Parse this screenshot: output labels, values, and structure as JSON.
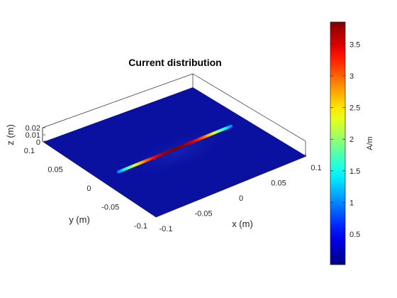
{
  "chart_data": {
    "type": "heatmap",
    "title": "Current distribution",
    "xlabel": "x (m)",
    "ylabel": "y (m)",
    "zlabel": "z (m)",
    "xlim": [
      -0.1,
      0.1
    ],
    "ylim": [
      -0.1,
      0.1
    ],
    "zlim": [
      0,
      0.02
    ],
    "x_ticks": [
      "-0.1",
      "-0.05",
      "0",
      "0.05",
      "0.1"
    ],
    "y_ticks": [
      "-0.1",
      "-0.05",
      "0",
      "0.05",
      "0.1"
    ],
    "z_ticks": [
      "0",
      "0.01",
      "0.02"
    ],
    "colormap": "jet",
    "colorbar": {
      "label": "A/m",
      "range": [
        0.02,
        3.85
      ],
      "ticks": [
        "0.5",
        "1",
        "1.5",
        "2",
        "2.5",
        "3",
        "3.5"
      ]
    },
    "ground_plane": {
      "z": 0,
      "current_level": 0.05,
      "color": "#0A10A0"
    },
    "dipole": {
      "orientation": "along x",
      "x_range": [
        -0.075,
        0.075
      ],
      "y": 0,
      "z": 0,
      "peak_current": 3.85,
      "edge_current": 1.0
    }
  }
}
